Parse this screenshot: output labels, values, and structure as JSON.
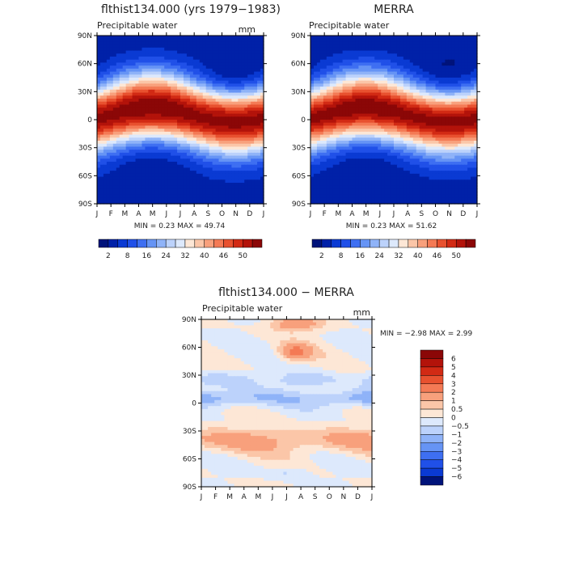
{
  "chart_data": [
    {
      "type": "heatmap",
      "title": "flthist134.000 (yrs 1979−1983)",
      "subtitle": "Precipitable water",
      "units": "mm",
      "x_categories": [
        "J",
        "F",
        "M",
        "A",
        "M",
        "J",
        "J",
        "A",
        "S",
        "O",
        "N",
        "D",
        "J"
      ],
      "y_ticks": [
        "90N",
        "60N",
        "30N",
        "0",
        "30S",
        "60S",
        "90S"
      ],
      "y_range": [
        -90,
        90
      ],
      "stats": "MIN =    0.23 MAX =   49.74",
      "colorbar_labels": [
        "2",
        "8",
        "16",
        "24",
        "32",
        "40",
        "46",
        "50"
      ],
      "colorbar_colors": [
        "#00137a",
        "#0021a8",
        "#0a3ad3",
        "#2050e8",
        "#3e6ff2",
        "#6694f5",
        "#8fb3f8",
        "#bcd2fb",
        "#dde9fc",
        "#fde7d6",
        "#fbc6a8",
        "#f8a07c",
        "#f47a55",
        "#e8512f",
        "#d22a14",
        "#b3130a",
        "#8b0707"
      ],
      "field": "model",
      "scale_max": 49.74
    },
    {
      "type": "heatmap",
      "title": "MERRA",
      "subtitle": "Precipitable water",
      "units": "",
      "x_categories": [
        "J",
        "F",
        "M",
        "A",
        "M",
        "J",
        "J",
        "A",
        "S",
        "O",
        "N",
        "D",
        "J"
      ],
      "y_ticks": [
        "90N",
        "60N",
        "30N",
        "0",
        "30S",
        "60S",
        "90S"
      ],
      "y_range": [
        -90,
        90
      ],
      "stats": "MIN =    0.23 MAX =   51.62",
      "colorbar_labels": [
        "2",
        "8",
        "16",
        "24",
        "32",
        "40",
        "46",
        "50"
      ],
      "colorbar_colors": [
        "#00137a",
        "#0021a8",
        "#0a3ad3",
        "#2050e8",
        "#3e6ff2",
        "#6694f5",
        "#8fb3f8",
        "#bcd2fb",
        "#dde9fc",
        "#fde7d6",
        "#fbc6a8",
        "#f8a07c",
        "#f47a55",
        "#e8512f",
        "#d22a14",
        "#b3130a",
        "#8b0707"
      ],
      "field": "obs",
      "scale_max": 51.62
    },
    {
      "type": "heatmap",
      "title": "flthist134.000 − MERRA",
      "subtitle": "Precipitable water",
      "units": "mm",
      "x_categories": [
        "J",
        "F",
        "M",
        "A",
        "M",
        "J",
        "J",
        "A",
        "S",
        "O",
        "N",
        "D",
        "J"
      ],
      "y_ticks": [
        "90N",
        "60N",
        "30N",
        "0",
        "30S",
        "60S",
        "90S"
      ],
      "y_range": [
        -90,
        90
      ],
      "stats": "MIN =   −2.98 MAX =    2.99",
      "colorbar_labels": [
        "6",
        "5",
        "4",
        "3",
        "2",
        "1",
        "0.5",
        "0",
        "−0.5",
        "−1",
        "−2",
        "−3",
        "−4",
        "−5",
        "−6"
      ],
      "colorbar_colors": [
        "#8b0707",
        "#b3130a",
        "#d22a14",
        "#e8512f",
        "#f47a55",
        "#f8a07c",
        "#fbc6a8",
        "#fde7d6",
        "#dde9fc",
        "#bcd2fb",
        "#8fb3f8",
        "#6694f5",
        "#3e6ff2",
        "#2050e8",
        "#0a3ad3",
        "#00137a"
      ],
      "field": "diff",
      "scale_max": 3.0
    }
  ]
}
